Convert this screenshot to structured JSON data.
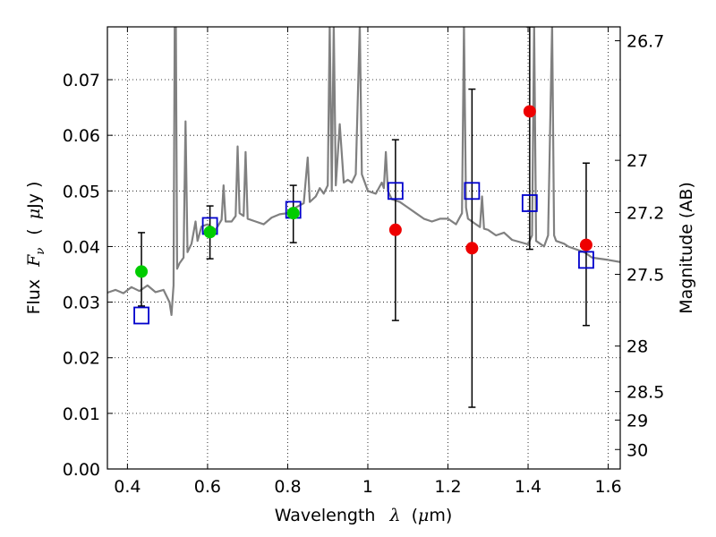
{
  "chart_data": {
    "type": "scatter",
    "xlabel": {
      "prefix": "Wavelength",
      "symbol": "λ",
      "unit_open": "(",
      "unit_mu": "μ",
      "unit_rest": "m)"
    },
    "ylabel": {
      "prefix": "Flux",
      "symbol_main": "F",
      "symbol_sub": "ν",
      "unit_open": "(",
      "unit_mu": "μ",
      "unit_rest": "Jy )"
    },
    "y2label": "Magnitude (AB)",
    "xlim": [
      0.35,
      1.63
    ],
    "ylim": [
      0.0,
      0.0795
    ],
    "grid": true,
    "xticks": [
      {
        "value": 0.4,
        "label": "0.4"
      },
      {
        "value": 0.6,
        "label": "0.6"
      },
      {
        "value": 0.8,
        "label": "0.8"
      },
      {
        "value": 1.0,
        "label": "1"
      },
      {
        "value": 1.2,
        "label": "1.2"
      },
      {
        "value": 1.4,
        "label": "1.4"
      },
      {
        "value": 1.6,
        "label": "1.6"
      }
    ],
    "yticks": [
      {
        "value": 0.0,
        "label": "0.00"
      },
      {
        "value": 0.01,
        "label": "0.01"
      },
      {
        "value": 0.02,
        "label": "0.02"
      },
      {
        "value": 0.03,
        "label": "0.03"
      },
      {
        "value": 0.04,
        "label": "0.04"
      },
      {
        "value": 0.05,
        "label": "0.05"
      },
      {
        "value": 0.06,
        "label": "0.06"
      },
      {
        "value": 0.07,
        "label": "0.07"
      }
    ],
    "y2ticks": [
      {
        "flux": 0.077,
        "label": "26.7"
      },
      {
        "flux": 0.0555,
        "label": "27"
      },
      {
        "flux": 0.0461,
        "label": "27.2"
      },
      {
        "flux": 0.035,
        "label": "27.5"
      },
      {
        "flux": 0.0221,
        "label": "28"
      },
      {
        "flux": 0.0139,
        "label": "28.5"
      },
      {
        "flux": 0.0088,
        "label": "29"
      },
      {
        "flux": 0.0035,
        "label": "30"
      }
    ],
    "series": [
      {
        "kind": "model_spectrum",
        "color": "#808080",
        "points": [
          [
            0.35,
            0.0317
          ],
          [
            0.37,
            0.0322
          ],
          [
            0.39,
            0.0316
          ],
          [
            0.41,
            0.0327
          ],
          [
            0.43,
            0.032
          ],
          [
            0.45,
            0.033
          ],
          [
            0.47,
            0.0318
          ],
          [
            0.49,
            0.0322
          ],
          [
            0.505,
            0.03
          ],
          [
            0.51,
            0.0277
          ],
          [
            0.515,
            0.033
          ],
          [
            0.518,
            0.08
          ],
          [
            0.521,
            0.08
          ],
          [
            0.524,
            0.036
          ],
          [
            0.53,
            0.037
          ],
          [
            0.54,
            0.038
          ],
          [
            0.545,
            0.0625
          ],
          [
            0.55,
            0.039
          ],
          [
            0.56,
            0.0405
          ],
          [
            0.57,
            0.0445
          ],
          [
            0.575,
            0.041
          ],
          [
            0.585,
            0.0436
          ],
          [
            0.6,
            0.044
          ],
          [
            0.62,
            0.043
          ],
          [
            0.635,
            0.0448
          ],
          [
            0.64,
            0.051
          ],
          [
            0.645,
            0.0445
          ],
          [
            0.66,
            0.0445
          ],
          [
            0.67,
            0.0455
          ],
          [
            0.675,
            0.058
          ],
          [
            0.68,
            0.046
          ],
          [
            0.69,
            0.0455
          ],
          [
            0.695,
            0.057
          ],
          [
            0.7,
            0.045
          ],
          [
            0.72,
            0.0445
          ],
          [
            0.74,
            0.044
          ],
          [
            0.76,
            0.0452
          ],
          [
            0.78,
            0.0458
          ],
          [
            0.8,
            0.046
          ],
          [
            0.82,
            0.047
          ],
          [
            0.84,
            0.0478
          ],
          [
            0.85,
            0.056
          ],
          [
            0.855,
            0.048
          ],
          [
            0.87,
            0.049
          ],
          [
            0.88,
            0.0505
          ],
          [
            0.89,
            0.0495
          ],
          [
            0.9,
            0.051
          ],
          [
            0.905,
            0.08
          ],
          [
            0.91,
            0.05
          ],
          [
            0.915,
            0.08
          ],
          [
            0.92,
            0.051
          ],
          [
            0.93,
            0.062
          ],
          [
            0.94,
            0.0515
          ],
          [
            0.95,
            0.052
          ],
          [
            0.96,
            0.0515
          ],
          [
            0.97,
            0.053
          ],
          [
            0.98,
            0.08
          ],
          [
            0.985,
            0.053
          ],
          [
            1.0,
            0.05
          ],
          [
            1.02,
            0.0495
          ],
          [
            1.035,
            0.0515
          ],
          [
            1.04,
            0.0505
          ],
          [
            1.045,
            0.057
          ],
          [
            1.05,
            0.05
          ],
          [
            1.06,
            0.0485
          ],
          [
            1.08,
            0.048
          ],
          [
            1.1,
            0.047
          ],
          [
            1.12,
            0.046
          ],
          [
            1.14,
            0.045
          ],
          [
            1.16,
            0.0445
          ],
          [
            1.18,
            0.045
          ],
          [
            1.2,
            0.045
          ],
          [
            1.22,
            0.044
          ],
          [
            1.235,
            0.046
          ],
          [
            1.24,
            0.08
          ],
          [
            1.245,
            0.047
          ],
          [
            1.25,
            0.045
          ],
          [
            1.27,
            0.044
          ],
          [
            1.28,
            0.0435
          ],
          [
            1.285,
            0.049
          ],
          [
            1.29,
            0.0432
          ],
          [
            1.3,
            0.043
          ],
          [
            1.32,
            0.042
          ],
          [
            1.34,
            0.0425
          ],
          [
            1.36,
            0.0412
          ],
          [
            1.38,
            0.0408
          ],
          [
            1.4,
            0.0404
          ],
          [
            1.41,
            0.042
          ],
          [
            1.415,
            0.08
          ],
          [
            1.42,
            0.041
          ],
          [
            1.43,
            0.0405
          ],
          [
            1.44,
            0.04
          ],
          [
            1.45,
            0.042
          ],
          [
            1.46,
            0.08
          ],
          [
            1.465,
            0.042
          ],
          [
            1.47,
            0.041
          ],
          [
            1.49,
            0.0405
          ],
          [
            1.5,
            0.04
          ],
          [
            1.52,
            0.0395
          ],
          [
            1.54,
            0.039
          ],
          [
            1.56,
            0.038
          ],
          [
            1.58,
            0.0378
          ],
          [
            1.6,
            0.0376
          ],
          [
            1.63,
            0.0372
          ]
        ]
      },
      {
        "kind": "model_photometry",
        "color": "#0000cc",
        "marker": "open-square",
        "points": [
          {
            "x": 0.435,
            "y": 0.0276
          },
          {
            "x": 0.606,
            "y": 0.0437
          },
          {
            "x": 0.814,
            "y": 0.0466
          },
          {
            "x": 1.069,
            "y": 0.05
          },
          {
            "x": 1.26,
            "y": 0.05
          },
          {
            "x": 1.404,
            "y": 0.0478
          },
          {
            "x": 1.545,
            "y": 0.0376
          }
        ]
      },
      {
        "kind": "observed_detections",
        "color": "#00cc00",
        "marker": "filled-circle",
        "points": [
          {
            "x": 0.435,
            "y": 0.0355,
            "err_low": 0.0293,
            "err_high": 0.0425
          },
          {
            "x": 0.606,
            "y": 0.0426,
            "err_low": 0.0378,
            "err_high": 0.0473
          },
          {
            "x": 0.814,
            "y": 0.046,
            "err_low": 0.0407,
            "err_high": 0.051
          }
        ]
      },
      {
        "kind": "observed_upper",
        "color": "#ee0000",
        "marker": "filled-circle",
        "points": [
          {
            "x": 1.069,
            "y": 0.043,
            "err_low": 0.0267,
            "err_high": 0.0592
          },
          {
            "x": 1.26,
            "y": 0.0397,
            "err_low": 0.0111,
            "err_high": 0.0683
          },
          {
            "x": 1.404,
            "y": 0.0643,
            "err_low": 0.0395,
            "err_high": 0.0795
          },
          {
            "x": 1.545,
            "y": 0.0403,
            "err_low": 0.0258,
            "err_high": 0.055
          }
        ]
      }
    ]
  }
}
